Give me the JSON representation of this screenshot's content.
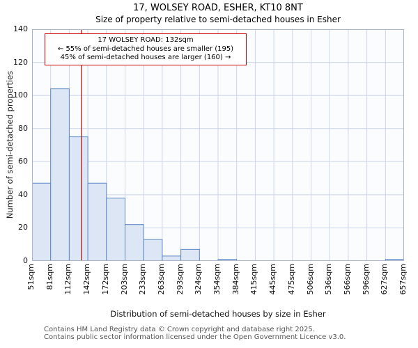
{
  "chart_data": {
    "type": "bar",
    "title": "17, WOLSEY ROAD, ESHER, KT10 8NT",
    "subtitle": "Size of property relative to semi-detached houses in Esher",
    "xlabel": "Distribution of semi-detached houses by size in Esher",
    "ylabel": "Number of semi-detached properties",
    "ylim": [
      0,
      140
    ],
    "ytick_step": 20,
    "grid": true,
    "bin_edges_sqm": [
      51,
      81,
      112,
      142,
      172,
      203,
      233,
      263,
      293,
      324,
      354,
      384,
      415,
      445,
      475,
      506,
      536,
      566,
      596,
      627,
      657
    ],
    "tick_labels": [
      "51sqm",
      "81sqm",
      "112sqm",
      "142sqm",
      "172sqm",
      "203sqm",
      "233sqm",
      "263sqm",
      "293sqm",
      "324sqm",
      "354sqm",
      "384sqm",
      "415sqm",
      "445sqm",
      "475sqm",
      "506sqm",
      "536sqm",
      "566sqm",
      "596sqm",
      "627sqm",
      "657sqm"
    ],
    "values": [
      47,
      104,
      75,
      47,
      38,
      22,
      13,
      3,
      7,
      0,
      1,
      0,
      0,
      0,
      0,
      0,
      0,
      0,
      0,
      1
    ],
    "marker": {
      "value_sqm": 132,
      "line1": "17 WOLSEY ROAD: 132sqm",
      "line2": "← 55% of semi-detached houses are smaller (195)",
      "line3": "45% of semi-detached houses are larger (160) →"
    }
  },
  "footer": {
    "line1": "Contains HM Land Registry data © Crown copyright and database right 2025.",
    "line2": "Contains public sector information licensed under the Open Government Licence v3.0."
  },
  "colors": {
    "bar_fill": "#dce6f4",
    "bar_stroke": "#5c87c5",
    "grid": "#ccd5e6",
    "plot_bg": "#fbfcfe",
    "plot_border": "#aab4c8",
    "marker_line": "#aa0000",
    "annotation_border": "#cc0000"
  }
}
